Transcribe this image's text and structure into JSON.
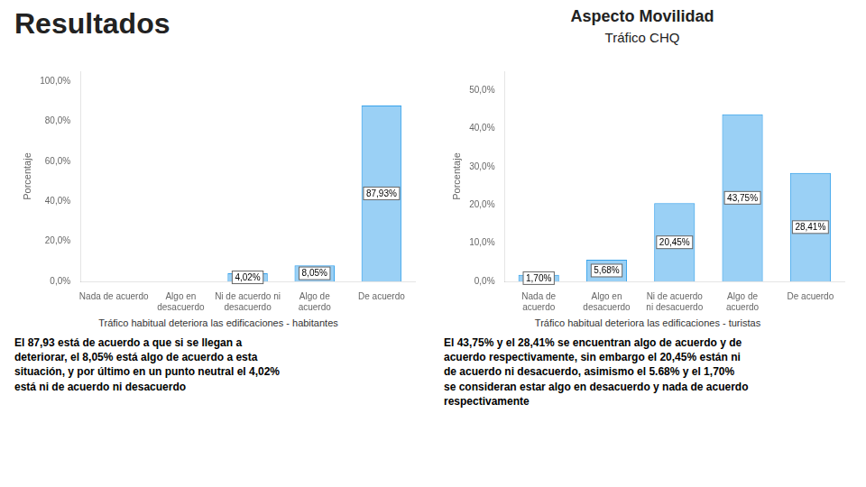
{
  "title": "Resultados",
  "annotations": [
    "Aspecto Movilidad",
    "Tráfico CHQ"
  ],
  "chart_data": [
    {
      "type": "bar",
      "categories": [
        "Nada de acuerdo",
        "Algo en\ndesacuerdo",
        "Ni de acuerdo ni\ndesacuerdo",
        "Algo de\nacuerdo",
        "De acuerdo"
      ],
      "values": [
        0.0,
        0.0,
        4.02,
        8.05,
        87.93
      ],
      "value_labels": [
        null,
        null,
        "4,02%",
        "8,05%",
        "87,93%"
      ],
      "ylabel": "Porcentaje",
      "ylim": [
        0,
        105
      ],
      "yticks": [
        {
          "value": 0,
          "label": "0,0%"
        },
        {
          "value": 20,
          "label": "20,0%"
        },
        {
          "value": 40,
          "label": "40,0%"
        },
        {
          "value": 60,
          "label": "60,0%"
        },
        {
          "value": 80,
          "label": "80,0%"
        },
        {
          "value": 100,
          "label": "100,0%"
        }
      ],
      "subtitle": "Tráfico habitual deteriora las edificaciones - habitantes",
      "annotations": [
        "El 87,93 está de acuerdo a que si se llegan a\ndeteriorar, el 8,05% está algo de acuerdo a esta\nsituación, y por último en un punto neutral el 4,02%\nestá ni de acuerdo ni desacuerdo"
      ],
      "grid": false
    },
    {
      "type": "bar",
      "categories": [
        "Nada de\nacuerdo",
        "Algo en\ndesacuerdo",
        "Ni de acuerdo\nni desacuerdo",
        "Algo de\nacuerdo",
        "De acuerdo"
      ],
      "values": [
        1.7,
        5.68,
        20.45,
        43.75,
        28.41
      ],
      "value_labels": [
        "1,70%",
        "5,68%",
        "20,45%",
        "43,75%",
        "28,41%"
      ],
      "ylabel": "Porcentaje",
      "ylim": [
        0,
        55
      ],
      "yticks": [
        {
          "value": 0,
          "label": "0,0%"
        },
        {
          "value": 10,
          "label": "10,0%"
        },
        {
          "value": 20,
          "label": "20,0%"
        },
        {
          "value": 30,
          "label": "30,0%"
        },
        {
          "value": 40,
          "label": "40,0%"
        },
        {
          "value": 50,
          "label": "50,0%"
        }
      ],
      "subtitle": "Tráfico habitual deteriora las edificaciones - turistas",
      "annotations": [
        "El 43,75% y el 28,41% se encuentran algo de acuerdo y de\nacuerdo respectivamente, sin embargo el 20,45% están ni\nde acuerdo ni desacuerdo, asimismo el 5.68% y el 1,70%\nse consideran estar algo en desacuerdo y nada de acuerdo\nrespectivamente"
      ],
      "grid": false
    }
  ]
}
